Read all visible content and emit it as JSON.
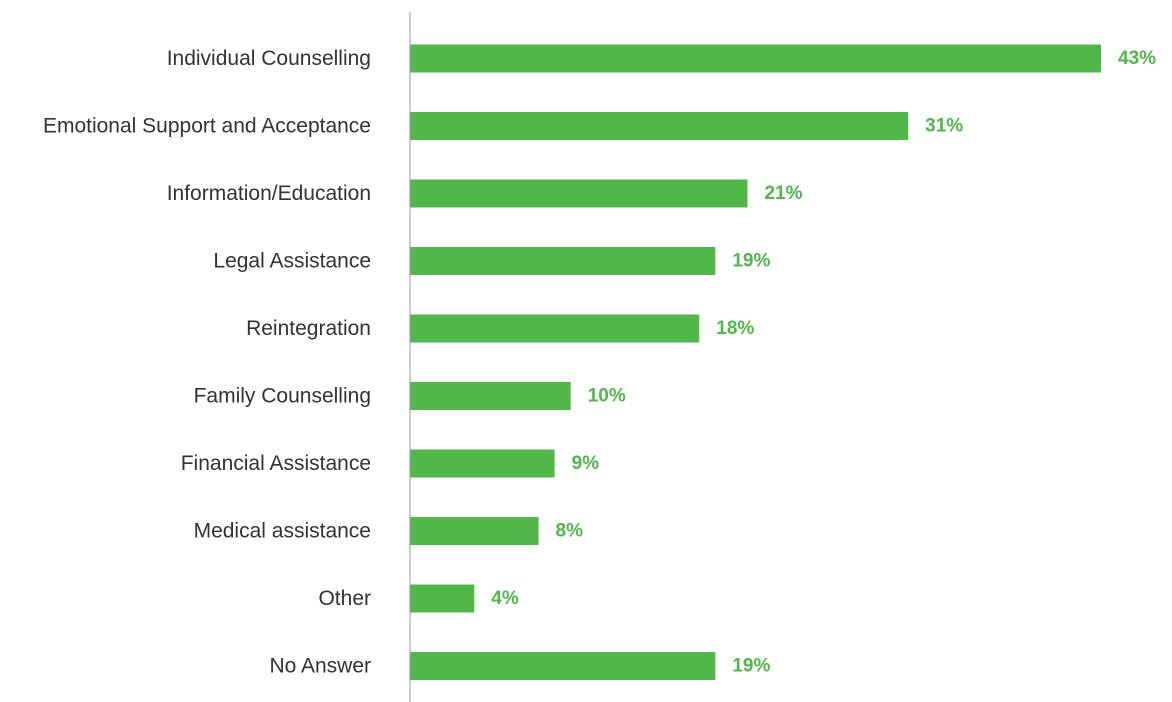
{
  "chart_data": {
    "type": "bar",
    "orientation": "horizontal",
    "categories": [
      "Individual Counselling",
      "Emotional Support and Acceptance",
      "Information/Education",
      "Legal Assistance",
      "Reintegration",
      "Family Counselling",
      "Financial Assistance",
      "Medical assistance",
      "Other",
      "No Answer"
    ],
    "values": [
      43,
      31,
      21,
      19,
      18,
      10,
      9,
      8,
      4,
      19
    ],
    "data_labels": [
      "43%",
      "31%",
      "21%",
      "19%",
      "18%",
      "10%",
      "9%",
      "8%",
      "4%",
      "19%"
    ],
    "unit": "%",
    "title": "",
    "xlabel": "",
    "ylabel": "",
    "xlim": [
      0,
      43
    ],
    "grid": false,
    "legend": "none",
    "colors": {
      "bar": "#4fb848",
      "value_label": "#4fb848",
      "category_label": "#333333",
      "axis": "#9a9a9a"
    }
  }
}
